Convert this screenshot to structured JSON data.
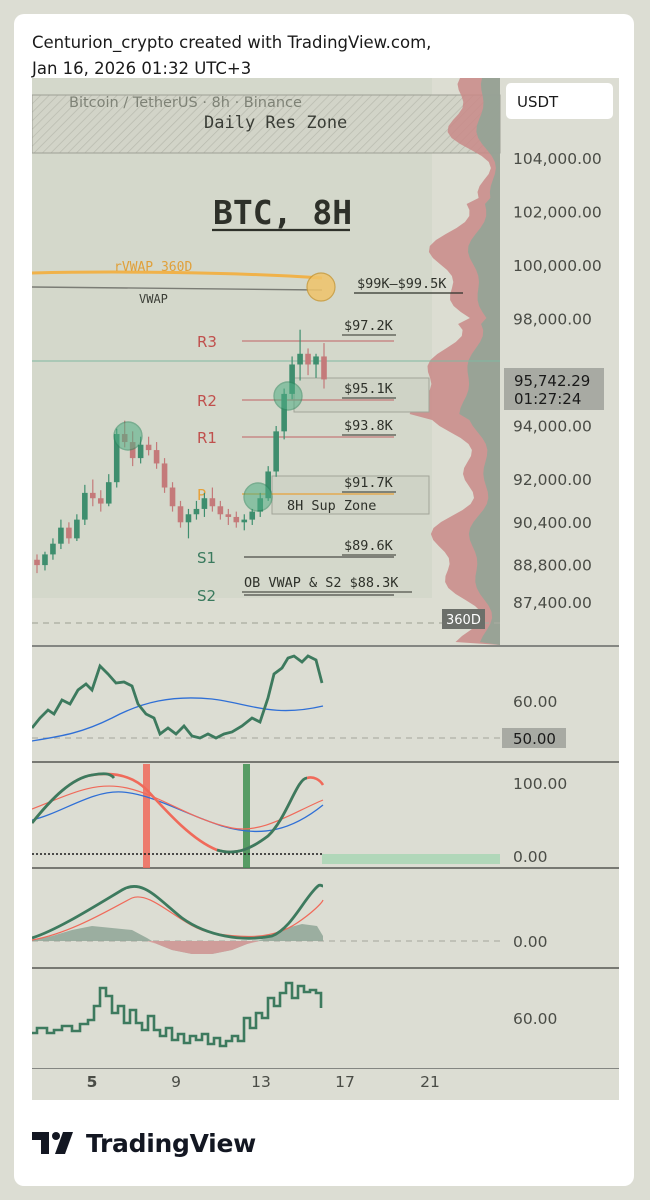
{
  "attribution": {
    "line1": "Centurion_crypto created with TradingView.com,",
    "line2": "Jan 16, 2026 01:32 UTC+3"
  },
  "header": {
    "symbol": "Bitcoin / TetherUS · 8h · Binance",
    "currency_button": "USDT"
  },
  "brand": {
    "logo_text": "TradingView"
  },
  "colors": {
    "bull": "#3e8e6e",
    "bear": "#c47a7a",
    "vwap360": "#f0b24a",
    "resistance_label": "#c0504d",
    "pivot_label": "#e6a13a",
    "support_label": "#3a7a5e",
    "osc_line": "#3d7a5e",
    "osc_signal": "#2f6fd6",
    "red_line": "#f06a5a"
  },
  "chart_data": {
    "type": "candlestick",
    "title": "BTC, 8H",
    "price_axis": {
      "ticks": [
        "104,000.00",
        "102,000.00",
        "100,000.00",
        "98,000.00",
        "94,000.00",
        "92,000.00",
        "90,400.00",
        "88,800.00",
        "87,400.00"
      ],
      "ylim": [
        87000,
        105000
      ]
    },
    "x_ticks": [
      "5",
      "9",
      "13",
      "17",
      "21"
    ],
    "current_price": {
      "value": "95,742.29",
      "countdown": "01:27:24"
    },
    "zones": [
      {
        "label": "Daily Res Zone",
        "low": 103900,
        "high": 105500
      },
      {
        "label": "8H Sup Zone",
        "low": 90800,
        "high": 92000
      },
      {
        "label": "",
        "low": 94500,
        "high": 95600
      }
    ],
    "vwap_lines": [
      {
        "label": "rVWAP 360D",
        "level": 99400
      },
      {
        "label": "VWAP",
        "level": 99000
      }
    ],
    "target_label": "$99K–$99.5K",
    "pivots": [
      {
        "name": "R3",
        "value": 97200,
        "label": "$97.2K"
      },
      {
        "name": "R2",
        "value": 95100,
        "label": "$95.1K"
      },
      {
        "name": "R1",
        "value": 93800,
        "label": "$93.8K"
      },
      {
        "name": "P",
        "value": 91700,
        "label": "$91.7K"
      },
      {
        "name": "S1",
        "value": 89600,
        "label": "$89.6K"
      },
      {
        "name": "S2",
        "value": 88300,
        "label": "OB VWAP & S2 $88.3K"
      }
    ],
    "side_badge": "360D",
    "candles": [
      [
        89000,
        89200,
        88500,
        88800
      ],
      [
        88800,
        89300,
        88600,
        89200
      ],
      [
        89200,
        89800,
        89000,
        89600
      ],
      [
        89600,
        90500,
        89400,
        90200
      ],
      [
        90200,
        90400,
        89600,
        89800
      ],
      [
        89800,
        90700,
        89700,
        90500
      ],
      [
        90500,
        91800,
        90300,
        91500
      ],
      [
        91500,
        92000,
        91000,
        91300
      ],
      [
        91300,
        91600,
        90800,
        91100
      ],
      [
        91100,
        92200,
        91000,
        91900
      ],
      [
        91900,
        93900,
        91700,
        93700
      ],
      [
        93700,
        94200,
        93200,
        93400
      ],
      [
        93400,
        93800,
        92500,
        92800
      ],
      [
        92800,
        93600,
        92600,
        93300
      ],
      [
        93300,
        93600,
        92900,
        93100
      ],
      [
        93100,
        93400,
        92400,
        92600
      ],
      [
        92600,
        92800,
        91500,
        91700
      ],
      [
        91700,
        91900,
        90800,
        91000
      ],
      [
        91000,
        91200,
        90200,
        90400
      ],
      [
        90400,
        90900,
        89800,
        90700
      ],
      [
        90700,
        91200,
        90500,
        90900
      ],
      [
        90900,
        91500,
        90600,
        91300
      ],
      [
        91300,
        91700,
        90800,
        91000
      ],
      [
        91000,
        91200,
        90500,
        90700
      ],
      [
        90700,
        90900,
        90300,
        90600
      ],
      [
        90600,
        90800,
        90200,
        90400
      ],
      [
        90400,
        90700,
        90100,
        90500
      ],
      [
        90500,
        90900,
        90300,
        90800
      ],
      [
        90800,
        91500,
        90600,
        91300
      ],
      [
        91300,
        92500,
        91200,
        92300
      ],
      [
        92300,
        94000,
        92100,
        93800
      ],
      [
        93800,
        95400,
        93500,
        95200
      ],
      [
        95200,
        96600,
        95000,
        96300
      ],
      [
        96300,
        97600,
        95700,
        96700
      ],
      [
        96700,
        96900,
        95900,
        96300
      ],
      [
        96300,
        96700,
        95800,
        96600
      ],
      [
        96600,
        97100,
        95400,
        95742
      ]
    ],
    "oscillators": [
      {
        "ticks": [
          "60.00"
        ],
        "badge": "50.00"
      },
      {
        "ticks": [
          "100.00",
          "0.00"
        ]
      },
      {
        "ticks": [
          "0.00"
        ]
      },
      {
        "ticks": [
          "60.00"
        ]
      }
    ]
  }
}
